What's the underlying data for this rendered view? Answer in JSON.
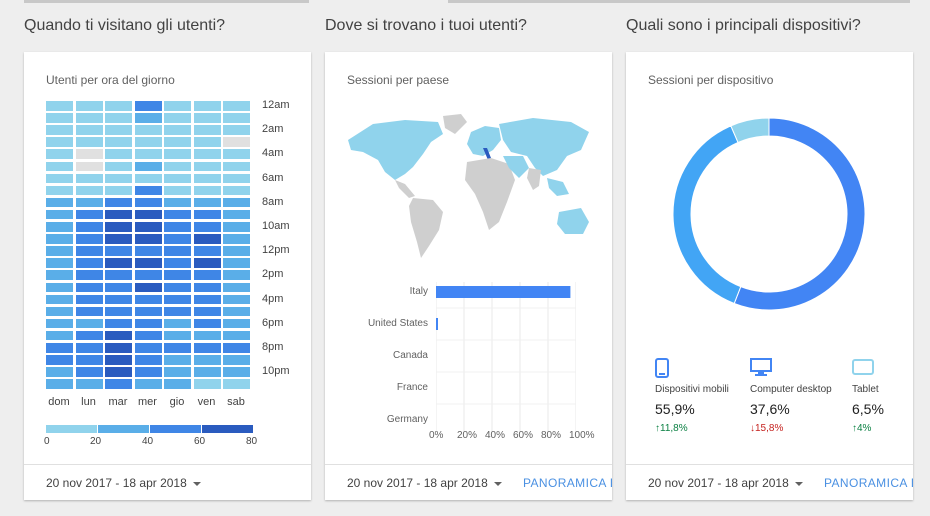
{
  "colors": {
    "scale": [
      "#90d3ec",
      "#5aaee8",
      "#3f86e6",
      "#2a5bbf"
    ],
    "map_highlight": "#90d3ec",
    "map_other": "#cfcfcf",
    "bar": "#4285f4",
    "donut": [
      "#4285f4",
      "#42a5f5",
      "#90d3ec"
    ],
    "up": "#0b8043",
    "down": "#c5221f"
  },
  "sections": [
    {
      "title": "Quando ti visitano gli utenti?"
    },
    {
      "title": "Dove si trovano i tuoi utenti?"
    },
    {
      "title": "Quali sono i principali dispositivi?"
    }
  ],
  "heatmap_card": {
    "title": "Utenti per ora del giorno",
    "hour_labels": [
      "12am",
      "2am",
      "4am",
      "6am",
      "8am",
      "10am",
      "12pm",
      "2pm",
      "4pm",
      "6pm",
      "8pm",
      "10pm"
    ],
    "day_labels": [
      "dom",
      "lun",
      "mar",
      "mer",
      "gio",
      "ven",
      "sab"
    ],
    "scale_labels": [
      "0",
      "20",
      "40",
      "60",
      "80"
    ],
    "footer_date": "20 nov 2017 - 18 apr 2018"
  },
  "country_card": {
    "title": "Sessioni per paese",
    "footer_date": "20 nov 2017 - 18 apr 2018",
    "footer_link": "PANORAMICA LO"
  },
  "device_card": {
    "title": "Sessioni per dispositivo",
    "footer_date": "20 nov 2017 - 18 apr 2018",
    "footer_link": "PANORAMICA DI",
    "devices": [
      {
        "name": "Dispositivi mobili",
        "pct": "55,9%",
        "delta": "11,8%",
        "dir": "up",
        "icon": "mobile-phone-icon"
      },
      {
        "name": "Computer desktop",
        "pct": "37,6%",
        "delta": "15,8%",
        "dir": "down",
        "icon": "desktop-monitor-icon"
      },
      {
        "name": "Tablet",
        "pct": "6,5%",
        "delta": "4%",
        "dir": "up",
        "icon": "tablet-icon"
      }
    ]
  },
  "chart_data": [
    {
      "type": "heatmap",
      "title": "Utenti per ora del giorno",
      "x": [
        "dom",
        "lun",
        "mar",
        "mer",
        "gio",
        "ven",
        "sab"
      ],
      "y": [
        "12am",
        "1am",
        "2am",
        "3am",
        "4am",
        "5am",
        "6am",
        "7am",
        "8am",
        "9am",
        "10am",
        "11am",
        "12pm",
        "1pm",
        "2pm",
        "3pm",
        "4pm",
        "5pm",
        "6pm",
        "7pm",
        "8pm",
        "9pm",
        "10pm",
        "11pm"
      ],
      "values": [
        [
          15,
          15,
          15,
          45,
          15,
          15,
          15
        ],
        [
          10,
          10,
          10,
          20,
          15,
          10,
          10
        ],
        [
          10,
          10,
          10,
          10,
          10,
          10,
          10
        ],
        [
          10,
          10,
          10,
          10,
          10,
          10,
          0
        ],
        [
          10,
          0,
          10,
          10,
          10,
          10,
          10
        ],
        [
          10,
          0,
          10,
          30,
          10,
          10,
          10
        ],
        [
          15,
          15,
          15,
          15,
          15,
          15,
          15
        ],
        [
          10,
          15,
          15,
          40,
          15,
          15,
          15
        ],
        [
          20,
          35,
          40,
          45,
          35,
          35,
          20
        ],
        [
          20,
          45,
          60,
          75,
          50,
          55,
          20
        ],
        [
          20,
          55,
          60,
          80,
          55,
          50,
          25
        ],
        [
          25,
          55,
          60,
          60,
          55,
          60,
          25
        ],
        [
          25,
          50,
          50,
          55,
          50,
          45,
          25
        ],
        [
          25,
          55,
          60,
          60,
          55,
          60,
          25
        ],
        [
          20,
          45,
          55,
          55,
          50,
          55,
          25
        ],
        [
          25,
          50,
          55,
          60,
          55,
          50,
          25
        ],
        [
          25,
          50,
          55,
          55,
          45,
          55,
          30
        ],
        [
          20,
          40,
          45,
          45,
          40,
          40,
          25
        ],
        [
          20,
          35,
          45,
          45,
          30,
          40,
          20
        ],
        [
          30,
          40,
          60,
          40,
          30,
          30,
          20
        ],
        [
          40,
          45,
          75,
          45,
          40,
          40,
          40
        ],
        [
          40,
          50,
          80,
          50,
          35,
          35,
          30
        ],
        [
          30,
          40,
          65,
          40,
          25,
          25,
          25
        ],
        [
          25,
          30,
          40,
          35,
          20,
          15,
          15
        ]
      ],
      "scale": [
        0,
        80
      ]
    },
    {
      "type": "bar",
      "title": "Sessioni per paese",
      "orientation": "horizontal",
      "categories": [
        "Italy",
        "United States",
        "Canada",
        "France",
        "Germany"
      ],
      "values": [
        96,
        1,
        0,
        0,
        0
      ],
      "xlim": [
        0,
        100
      ],
      "xticks": [
        "0%",
        "20%",
        "40%",
        "60%",
        "80%",
        "100%"
      ],
      "grid": true
    },
    {
      "type": "pie",
      "title": "Sessioni per dispositivo",
      "donut": true,
      "categories": [
        "Dispositivi mobili",
        "Computer desktop",
        "Tablet"
      ],
      "values": [
        55.9,
        37.6,
        6.5
      ]
    }
  ]
}
